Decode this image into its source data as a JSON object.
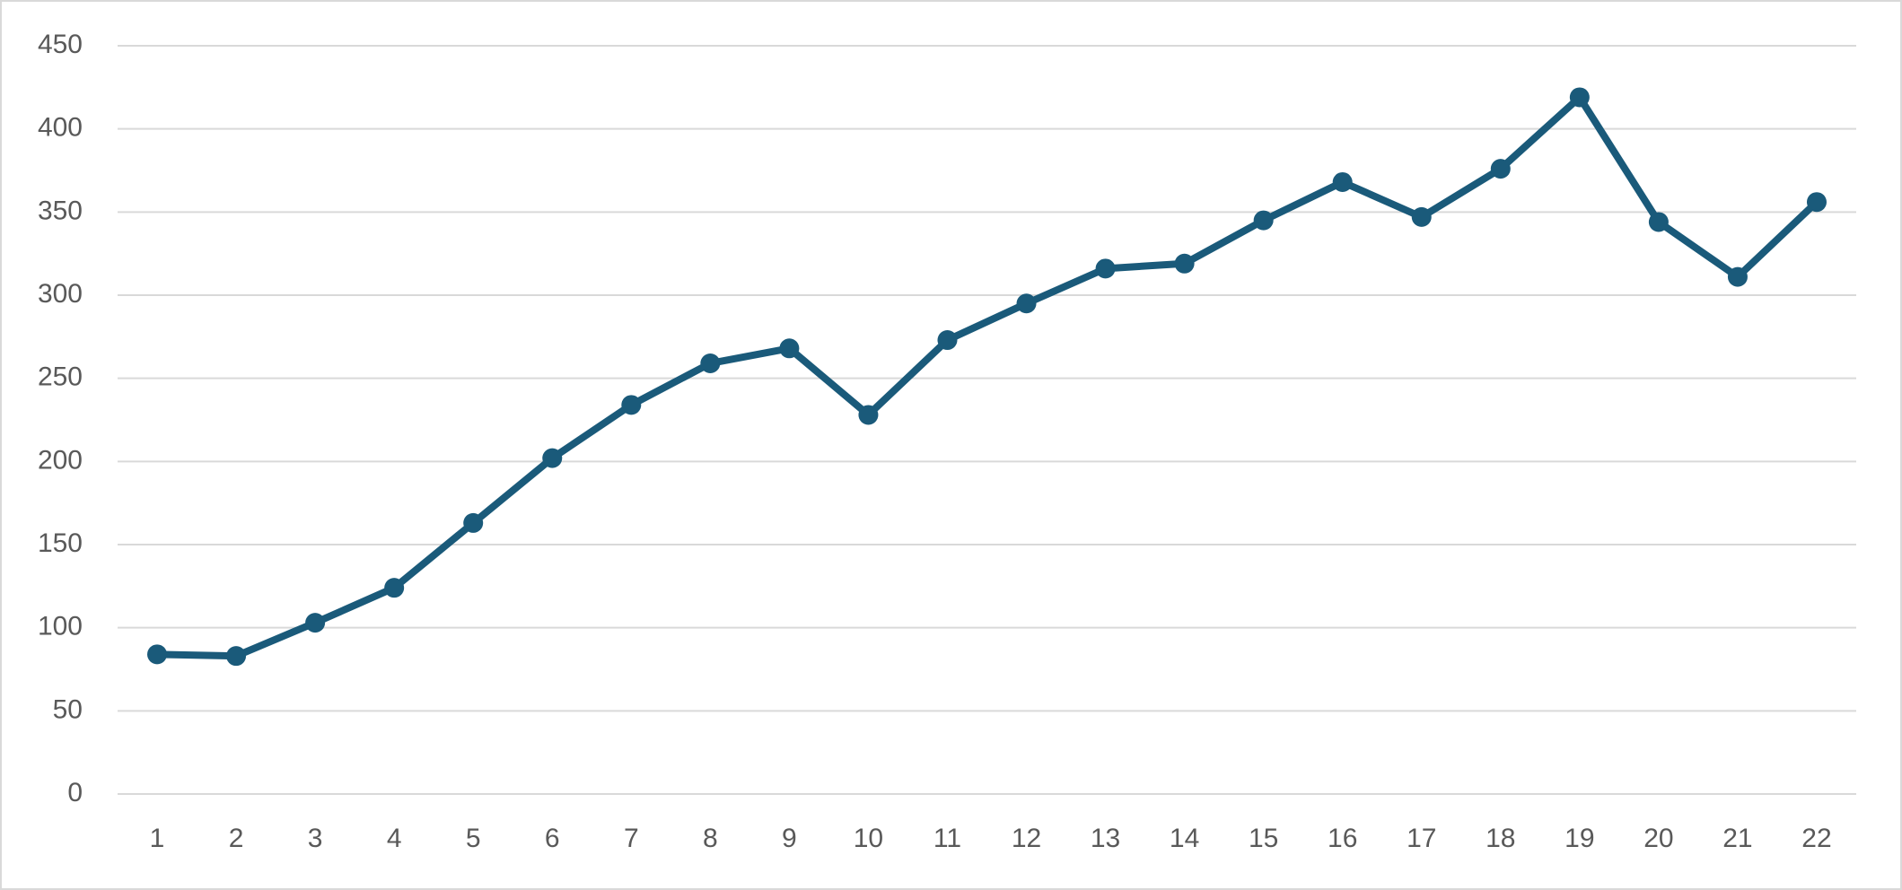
{
  "chart_data": {
    "type": "line",
    "categories": [
      "1",
      "2",
      "3",
      "4",
      "5",
      "6",
      "7",
      "8",
      "9",
      "10",
      "11",
      "12",
      "13",
      "14",
      "15",
      "16",
      "17",
      "18",
      "19",
      "20",
      "21",
      "22"
    ],
    "series": [
      {
        "color": "#1a5a7a",
        "values": [
          84,
          83,
          103,
          124,
          163,
          202,
          234,
          259,
          268,
          228,
          273,
          295,
          316,
          319,
          345,
          368,
          347,
          376,
          419,
          344,
          311,
          356
        ]
      }
    ],
    "ylim": [
      0,
      450
    ],
    "yticks": [
      0,
      50,
      100,
      150,
      200,
      250,
      300,
      350,
      400,
      450
    ],
    "grid": true
  }
}
